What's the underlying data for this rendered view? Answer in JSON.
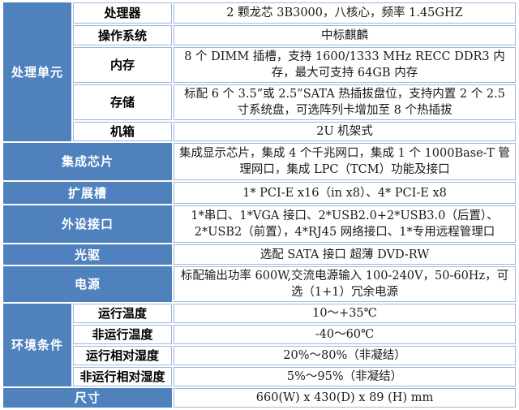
{
  "colors": {
    "header_bg": "#4f81bd",
    "header_text": "#ffffff",
    "cell_border": "#9cb8dc",
    "value_text": "#1a1a1a"
  },
  "groups": {
    "processing": {
      "label": "处理单元"
    },
    "environment": {
      "label": "环境条件"
    }
  },
  "rows": {
    "processor": {
      "label": "处理器",
      "value": "2 颗龙芯 3B3000，八核心，频率 1.45GHZ"
    },
    "os": {
      "label": "操作系统",
      "value": "中标麒麟"
    },
    "memory": {
      "label": "内存",
      "value": "8 个 DIMM 插槽，支持 1600/1333 MHz RECC DDR3 内存，最大可支持 64GB 内存"
    },
    "storage": {
      "label": "存储",
      "value": "标配 6 个 3.5”或 2.5”SATA 热插拔盘位，支持内置 2 个 2.5 寸系统盘，可选阵列卡增加至 8 个热插拔"
    },
    "chassis": {
      "label": "机箱",
      "value": "2U 机架式"
    },
    "integrated_chips": {
      "label": "集成芯片",
      "value": "集成显示芯片，集成 4 个千兆网口，集成 1 个 1000Base-T 管理网口，集成 LPC（TCM）功能及接口"
    },
    "expansion_slots": {
      "label": "扩展槽",
      "value": "1* PCI-E x16（in x8）、4* PCI-E x8"
    },
    "peripheral_ports": {
      "label": "外设接口",
      "value": "1*串口、1*VGA 接口、2*USB2.0+2*USB3.0（后置）、2*USB2（前置），4*RJ45 网络接口、1*专用远程管理口"
    },
    "optical_drive": {
      "label": "光驱",
      "value": "选配 SATA 接口 超薄 DVD-RW"
    },
    "power": {
      "label": "电源",
      "value": "标配输出功率 600W,交流电源输入 100-240V，50-60Hz，可选（1+1）冗余电源"
    },
    "op_temp": {
      "label": "运行温度",
      "value": "10～+35℃"
    },
    "non_op_temp": {
      "label": "非运行温度",
      "value": "-40～60℃"
    },
    "op_humidity": {
      "label": "运行相对湿度",
      "value": "20%～80%（非凝结）"
    },
    "non_op_humidity": {
      "label": "非运行相对湿度",
      "value": "5%～95%（非凝结）"
    },
    "dimensions": {
      "label": "尺寸",
      "value": "660(W) x 430(D) x 89 (H) mm"
    }
  }
}
